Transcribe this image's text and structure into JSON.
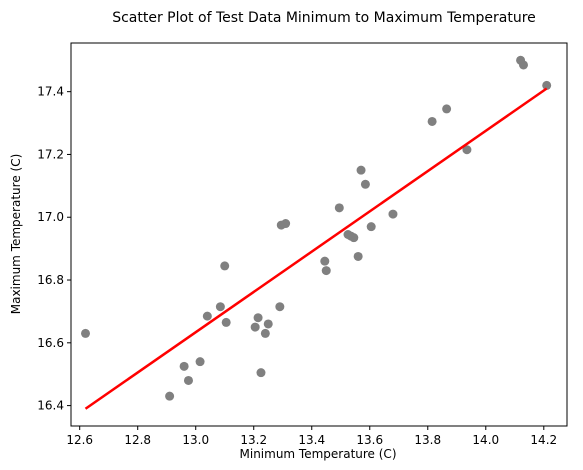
{
  "chart_data": {
    "type": "scatter",
    "title": "Scatter Plot of Test Data Minimum to Maximum Temperature",
    "xlabel": "Minimum Temperature (C)",
    "ylabel": "Maximum Temperature (C)",
    "xlim": [
      12.57,
      14.28
    ],
    "ylim": [
      16.335,
      17.555
    ],
    "xticks": [
      "12.6",
      "12.8",
      "13.0",
      "13.2",
      "13.4",
      "13.6",
      "13.8",
      "14.0",
      "14.2"
    ],
    "xtick_values": [
      12.6,
      12.8,
      13.0,
      13.2,
      13.4,
      13.6,
      13.8,
      14.0,
      14.2
    ],
    "yticks": [
      "16.4",
      "16.6",
      "16.8",
      "17.0",
      "17.2",
      "17.4"
    ],
    "ytick_values": [
      16.4,
      16.6,
      16.8,
      17.0,
      17.2,
      17.4
    ],
    "grid": false,
    "point_color": "#808080",
    "line_color": "#ff0000",
    "points": [
      {
        "x": 12.62,
        "y": 16.63
      },
      {
        "x": 12.91,
        "y": 16.43
      },
      {
        "x": 12.96,
        "y": 16.525
      },
      {
        "x": 12.975,
        "y": 16.48
      },
      {
        "x": 13.015,
        "y": 16.54
      },
      {
        "x": 13.04,
        "y": 16.685
      },
      {
        "x": 13.085,
        "y": 16.715
      },
      {
        "x": 13.1,
        "y": 16.845
      },
      {
        "x": 13.105,
        "y": 16.665
      },
      {
        "x": 13.205,
        "y": 16.65
      },
      {
        "x": 13.215,
        "y": 16.68
      },
      {
        "x": 13.225,
        "y": 16.505
      },
      {
        "x": 13.24,
        "y": 16.63
      },
      {
        "x": 13.25,
        "y": 16.66
      },
      {
        "x": 13.29,
        "y": 16.715
      },
      {
        "x": 13.295,
        "y": 16.975
      },
      {
        "x": 13.31,
        "y": 16.98
      },
      {
        "x": 13.445,
        "y": 16.86
      },
      {
        "x": 13.45,
        "y": 16.83
      },
      {
        "x": 13.495,
        "y": 17.03
      },
      {
        "x": 13.525,
        "y": 16.945
      },
      {
        "x": 13.535,
        "y": 16.94
      },
      {
        "x": 13.545,
        "y": 16.935
      },
      {
        "x": 13.56,
        "y": 16.875
      },
      {
        "x": 13.57,
        "y": 17.15
      },
      {
        "x": 13.585,
        "y": 17.105
      },
      {
        "x": 13.605,
        "y": 16.97
      },
      {
        "x": 13.68,
        "y": 17.01
      },
      {
        "x": 13.815,
        "y": 17.305
      },
      {
        "x": 13.865,
        "y": 17.345
      },
      {
        "x": 13.935,
        "y": 17.215
      },
      {
        "x": 14.12,
        "y": 17.5
      },
      {
        "x": 14.13,
        "y": 17.485
      },
      {
        "x": 14.21,
        "y": 17.42
      }
    ],
    "fit_line": {
      "x": [
        12.62,
        14.21
      ],
      "y": [
        16.39,
        17.41
      ]
    }
  }
}
